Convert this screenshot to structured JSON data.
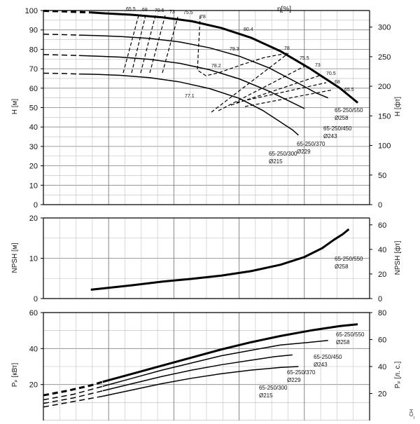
{
  "chart_data": [
    {
      "type": "line",
      "panel": "head",
      "ylabel_left": "H [м]",
      "ylabel_right": "H [фт]",
      "efficiency_unit_label": "η[%]",
      "ylim_left": [
        0,
        100
      ],
      "yticks_left": [
        0,
        10,
        20,
        30,
        40,
        50,
        60,
        70,
        80,
        90,
        100
      ],
      "ylim_right": [
        0,
        328
      ],
      "yticks_right": [
        0,
        50,
        100,
        150,
        200,
        250,
        300
      ],
      "x_gridlines": 5,
      "grid": true,
      "series": [
        {
          "name": "65-250/550",
          "label_lines": [
            "65-250/550",
            "Ø258"
          ],
          "points": [
            [
              0.0,
              99.8
            ],
            [
              0.3,
              99.6
            ],
            [
              0.6,
              99.2
            ],
            [
              0.8,
              99.0
            ],
            [
              1.0,
              98.6
            ],
            [
              1.5,
              97.8
            ],
            [
              2.0,
              96.5
            ],
            [
              2.5,
              94.5
            ],
            [
              3.0,
              91.0
            ],
            [
              3.5,
              86.0
            ],
            [
              4.0,
              79.0
            ],
            [
              4.5,
              70.0
            ],
            [
              5.0,
              60.0
            ],
            [
              5.2,
              55.0
            ],
            [
              5.3,
              52.5
            ]
          ]
        },
        {
          "name": "65-250/450",
          "label_lines": [
            "65-250/450",
            "Ø243"
          ],
          "points": [
            [
              0.0,
              87.8
            ],
            [
              0.3,
              87.6
            ],
            [
              0.6,
              87.3
            ],
            [
              0.9,
              87.1
            ],
            [
              1.3,
              86.6
            ],
            [
              1.8,
              85.6
            ],
            [
              2.3,
              83.8
            ],
            [
              2.8,
              80.8
            ],
            [
              3.3,
              76.5
            ],
            [
              3.8,
              70.5
            ],
            [
              4.3,
              62.5
            ],
            [
              4.6,
              57.5
            ],
            [
              4.8,
              55.0
            ]
          ]
        },
        {
          "name": "65-250/370",
          "label_lines": [
            "65-250/370",
            "Ø229"
          ],
          "points": [
            [
              0.0,
              77.3
            ],
            [
              0.3,
              77.1
            ],
            [
              0.6,
              76.8
            ],
            [
              0.9,
              76.5
            ],
            [
              1.3,
              76.0
            ],
            [
              1.8,
              74.8
            ],
            [
              2.3,
              72.8
            ],
            [
              2.8,
              69.5
            ],
            [
              3.3,
              64.8
            ],
            [
              3.8,
              58.5
            ],
            [
              4.2,
              52.5
            ],
            [
              4.4,
              49.5
            ]
          ]
        },
        {
          "name": "65-250/300",
          "label_lines": [
            "65-250/300",
            "Ø215"
          ],
          "points": [
            [
              0.0,
              67.7
            ],
            [
              0.3,
              67.6
            ],
            [
              0.6,
              67.3
            ],
            [
              0.9,
              67.1
            ],
            [
              1.3,
              66.6
            ],
            [
              1.8,
              65.4
            ],
            [
              2.3,
              63.2
            ],
            [
              2.8,
              59.8
            ],
            [
              3.3,
              54.8
            ],
            [
              3.7,
              48.5
            ],
            [
              4.0,
              42.5
            ],
            [
              4.2,
              38.5
            ],
            [
              4.3,
              35.8
            ]
          ]
        }
      ],
      "efficiency_contour_labels": [
        "65.5",
        "68",
        "70.5",
        "73",
        "75.5",
        "78",
        "80.4",
        "79.3",
        "78.2",
        "77.1",
        "78",
        "75.5",
        "73",
        "70.5",
        "68",
        "65.5"
      ]
    },
    {
      "type": "line",
      "panel": "npsh",
      "ylabel_left": "NPSH [м]",
      "ylabel_right": "NPSH [фт]",
      "ylim_left": [
        0,
        20
      ],
      "yticks_left": [
        0,
        10,
        20
      ],
      "ylim_right": [
        0,
        65.6
      ],
      "yticks_right": [
        0,
        20,
        40,
        60
      ],
      "x_gridlines": 5,
      "grid": true,
      "series": [
        {
          "name": "65-250/550",
          "label_lines": [
            "65-250/550",
            "Ø258"
          ],
          "points": [
            [
              0.8,
              2.2
            ],
            [
              1.5,
              3.3
            ],
            [
              2.0,
              4.2
            ],
            [
              2.5,
              4.9
            ],
            [
              3.0,
              5.7
            ],
            [
              3.5,
              6.8
            ],
            [
              4.0,
              8.4
            ],
            [
              4.4,
              10.3
            ],
            [
              4.7,
              12.5
            ],
            [
              4.9,
              14.6
            ],
            [
              5.05,
              16.0
            ],
            [
              5.15,
              17.2
            ]
          ]
        }
      ]
    },
    {
      "type": "line",
      "panel": "power",
      "ylabel_left": "Pₚ [кВт]",
      "ylabel_right": "Pₚ [л. с.]",
      "ylim_left": [
        0,
        60
      ],
      "yticks_left": [
        20,
        40,
        60
      ],
      "ylim_right": [
        0,
        80
      ],
      "yticks_right": [
        20,
        40,
        60,
        80
      ],
      "x_gridlines": 5,
      "grid": true,
      "series": [
        {
          "name": "65-250/550",
          "label_lines": [
            "65-250/550",
            "Ø258"
          ],
          "points": [
            [
              0.0,
              14.0
            ],
            [
              0.4,
              16.5
            ],
            [
              0.8,
              19.5
            ],
            [
              1.0,
              21.5
            ],
            [
              1.5,
              26.0
            ],
            [
              2.0,
              30.5
            ],
            [
              2.5,
              35.0
            ],
            [
              3.0,
              39.5
            ],
            [
              3.5,
              43.5
            ],
            [
              4.0,
              47.0
            ],
            [
              4.5,
              50.0
            ],
            [
              5.0,
              52.5
            ],
            [
              5.3,
              53.5
            ]
          ]
        },
        {
          "name": "65-250/450",
          "label_lines": [
            "65-250/450",
            "Ø243"
          ],
          "points": [
            [
              0.0,
              11.5
            ],
            [
              0.5,
              14.5
            ],
            [
              1.0,
              19.0
            ],
            [
              1.5,
              23.5
            ],
            [
              2.0,
              28.0
            ],
            [
              2.5,
              32.0
            ],
            [
              3.0,
              36.0
            ],
            [
              3.5,
              39.0
            ],
            [
              4.0,
              42.0
            ],
            [
              4.5,
              43.5
            ],
            [
              4.8,
              44.5
            ]
          ]
        },
        {
          "name": "65-250/370",
          "label_lines": [
            "65-250/370",
            "Ø229"
          ],
          "points": [
            [
              0.0,
              9.5
            ],
            [
              0.5,
              12.5
            ],
            [
              1.0,
              16.5
            ],
            [
              1.5,
              20.5
            ],
            [
              2.0,
              24.5
            ],
            [
              2.5,
              28.0
            ],
            [
              3.0,
              31.0
            ],
            [
              3.5,
              33.5
            ],
            [
              3.9,
              35.5
            ],
            [
              4.2,
              36.5
            ]
          ]
        },
        {
          "name": "65-250/300",
          "label_lines": [
            "65-250/300",
            "Ø215"
          ],
          "points": [
            [
              0.0,
              7.5
            ],
            [
              0.5,
              10.5
            ],
            [
              1.0,
              13.5
            ],
            [
              1.5,
              17.0
            ],
            [
              2.0,
              20.5
            ],
            [
              2.5,
              23.5
            ],
            [
              3.0,
              26.0
            ],
            [
              3.5,
              28.0
            ],
            [
              4.0,
              29.5
            ],
            [
              4.3,
              30.0
            ]
          ]
        }
      ]
    }
  ],
  "watermark_text": "_CH"
}
